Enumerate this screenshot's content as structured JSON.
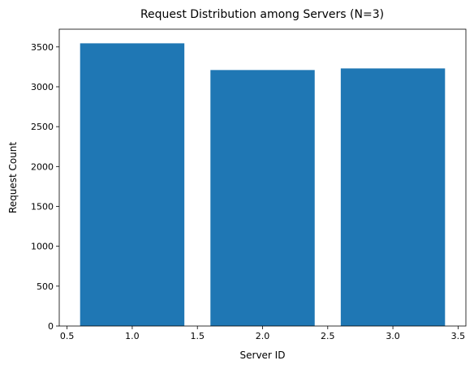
{
  "chart_data": {
    "type": "bar",
    "title": "Request Distribution among Servers (N=3)",
    "xlabel": "Server ID",
    "ylabel": "Request Count",
    "x": [
      1,
      2,
      3
    ],
    "values": [
      3545,
      3210,
      3230
    ],
    "bar_width": 0.8,
    "xlim": [
      0.44,
      3.56
    ],
    "ylim": [
      0,
      3722
    ],
    "xticks": [
      0.5,
      1.0,
      1.5,
      2.0,
      2.5,
      3.0,
      3.5
    ],
    "xtick_labels": [
      "0.5",
      "1.0",
      "1.5",
      "2.0",
      "2.5",
      "3.0",
      "3.5"
    ],
    "yticks": [
      0,
      500,
      1000,
      1500,
      2000,
      2500,
      3000,
      3500
    ],
    "ytick_labels": [
      "0",
      "500",
      "1000",
      "1500",
      "2000",
      "2500",
      "3000",
      "3500"
    ],
    "bar_color": "#1f77b4",
    "grid": false,
    "legend": "none"
  }
}
